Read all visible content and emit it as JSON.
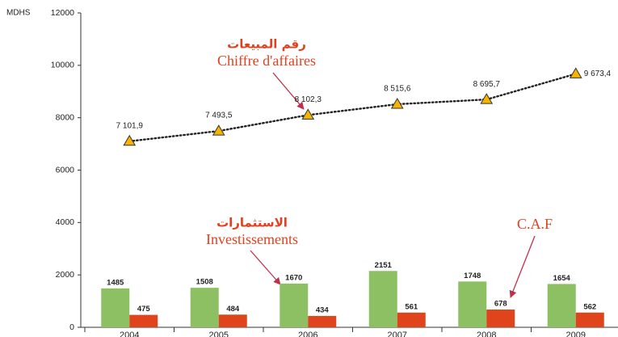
{
  "chart_data": {
    "type": "bar",
    "y_label": "MDHS",
    "categories": [
      "2004",
      "2005",
      "2006",
      "2007",
      "2008",
      "2009"
    ],
    "ylim": [
      0,
      12000
    ],
    "yticks": [
      0,
      2000,
      4000,
      6000,
      8000,
      10000,
      12000
    ],
    "grid": false,
    "series": [
      {
        "name": "Investissements",
        "type": "bar",
        "color": "#8dc063",
        "values": [
          1485,
          1508,
          1670,
          2151,
          1748,
          1654
        ]
      },
      {
        "name": "C.A.F",
        "type": "bar",
        "color": "#e0441c",
        "values": [
          475,
          484,
          434,
          561,
          678,
          562
        ]
      },
      {
        "name": "Chiffre d'affaires",
        "type": "line",
        "color": "#f5b400",
        "values": [
          7101.9,
          7493.5,
          8102.3,
          8515.6,
          8695.7,
          9673.4
        ],
        "value_labels": [
          "7 101,9",
          "7 493,5",
          "8 102,3",
          "8 515,6",
          "8 695,7",
          "9 673,4"
        ]
      }
    ],
    "annotations": [
      "رقم المبيعات",
      "Chiffre d'affaires",
      "الاستثمارات",
      "Investissements",
      "C.A.F"
    ]
  }
}
